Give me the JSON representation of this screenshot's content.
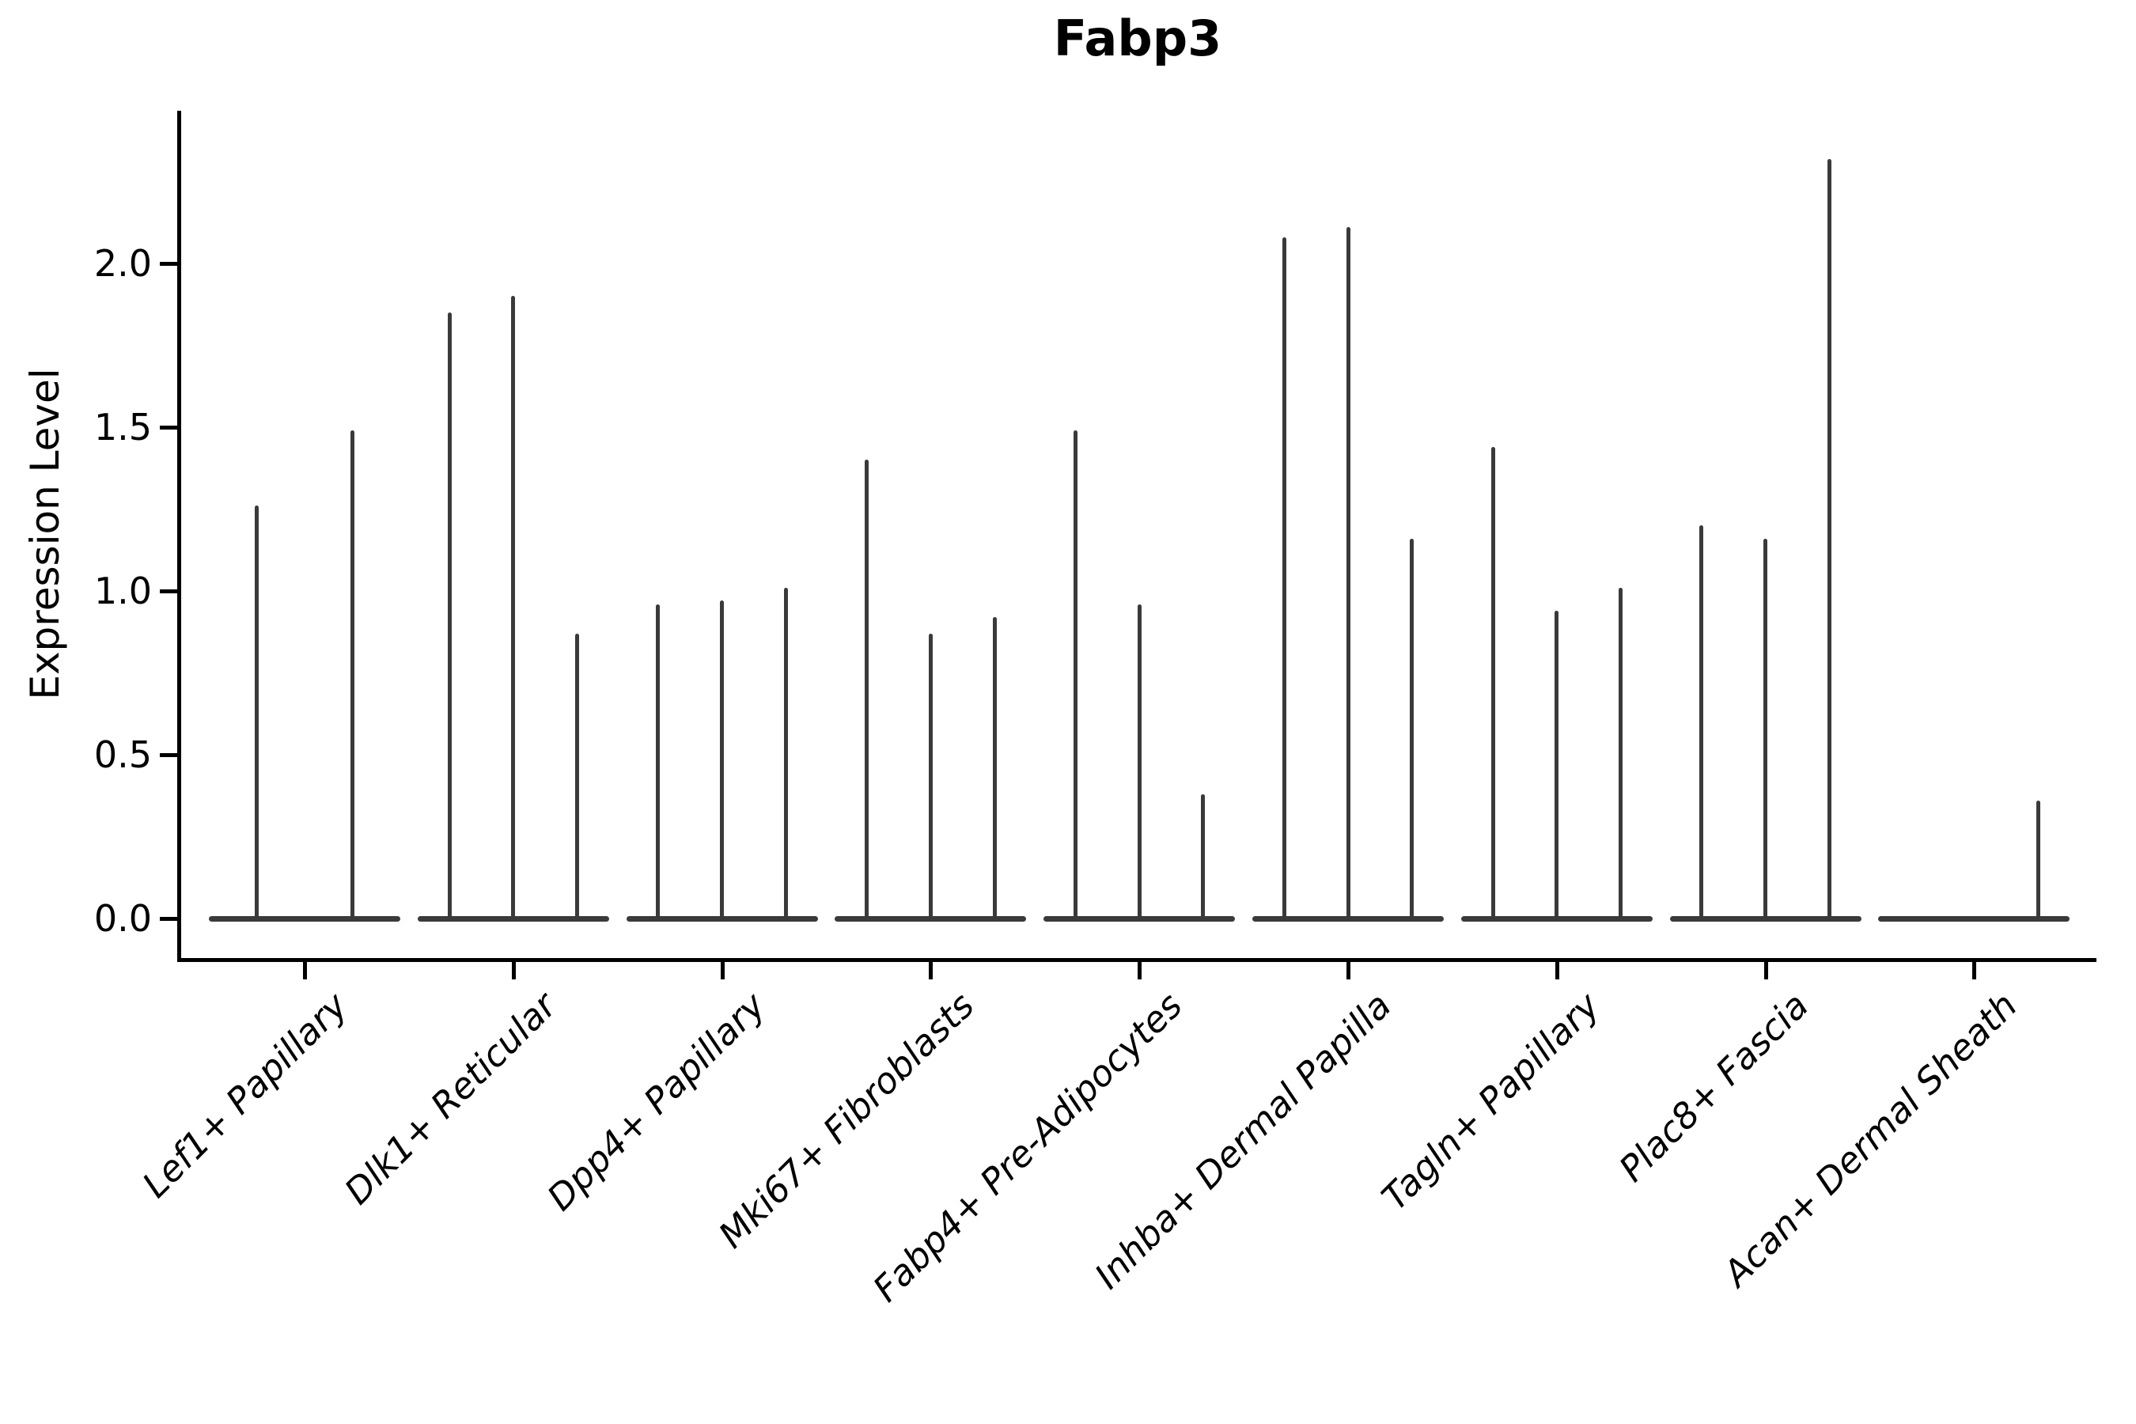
{
  "chart_data": {
    "type": "violin",
    "title": "Fabp3",
    "ylabel": "Expression Level",
    "xlabel": "",
    "ytick_values": [
      0.0,
      0.5,
      1.0,
      1.5,
      2.0
    ],
    "ytick_labels": [
      "0.0",
      "0.5",
      "1.0",
      "1.5",
      "2.0"
    ],
    "ylim": [
      -0.12,
      2.46
    ],
    "xtick_rotation": 45,
    "grid": false,
    "legend": false,
    "violin_color": "#3a3a3a",
    "axis_color": "#000000",
    "categories": [
      "Lef1+ Papillary",
      "Dlk1+ Reticular",
      "Dpp4+ Papillary",
      "Mki67+ Fibroblasts",
      "Fabp4+ Pre-Adipocytes",
      "Inhba+ Dermal Papilla",
      "Tagln+ Papillary",
      "Plac8+ Fascia",
      "Acan+ Dermal Sheath"
    ],
    "groups": [
      {
        "label": "Lef1+ Papillary",
        "n_slots": 2,
        "violins": [
          {
            "slot": 0,
            "peak": 1.26
          },
          {
            "slot": 1,
            "peak": 1.49
          }
        ]
      },
      {
        "label": "Dlk1+ Reticular",
        "n_slots": 3,
        "violins": [
          {
            "slot": 0,
            "peak": 1.85
          },
          {
            "slot": 1,
            "peak": 1.9
          },
          {
            "slot": 2,
            "peak": 0.87
          }
        ]
      },
      {
        "label": "Dpp4+ Papillary",
        "n_slots": 3,
        "violins": [
          {
            "slot": 0,
            "peak": 0.96
          },
          {
            "slot": 1,
            "peak": 0.97
          },
          {
            "slot": 2,
            "peak": 1.01
          }
        ]
      },
      {
        "label": "Mki67+ Fibroblasts",
        "n_slots": 3,
        "violins": [
          {
            "slot": 0,
            "peak": 1.4
          },
          {
            "slot": 1,
            "peak": 0.87
          },
          {
            "slot": 2,
            "peak": 0.92
          }
        ]
      },
      {
        "label": "Fabp4+ Pre-Adipocytes",
        "n_slots": 3,
        "violins": [
          {
            "slot": 0,
            "peak": 1.49
          },
          {
            "slot": 1,
            "peak": 0.96
          },
          {
            "slot": 2,
            "peak": 0.38
          }
        ]
      },
      {
        "label": "Inhba+ Dermal Papilla",
        "n_slots": 3,
        "violins": [
          {
            "slot": 0,
            "peak": 2.08
          },
          {
            "slot": 1,
            "peak": 2.11
          },
          {
            "slot": 2,
            "peak": 1.16
          }
        ]
      },
      {
        "label": "Tagln+ Papillary",
        "n_slots": 3,
        "violins": [
          {
            "slot": 0,
            "peak": 1.44
          },
          {
            "slot": 1,
            "peak": 0.94
          },
          {
            "slot": 2,
            "peak": 1.01
          }
        ]
      },
      {
        "label": "Plac8+ Fascia",
        "n_slots": 3,
        "violins": [
          {
            "slot": 0,
            "peak": 1.2
          },
          {
            "slot": 1,
            "peak": 1.16
          },
          {
            "slot": 2,
            "peak": 2.32
          }
        ]
      },
      {
        "label": "Acan+ Dermal Sheath",
        "n_slots": 3,
        "violins": [
          {
            "slot": 2,
            "peak": 0.36
          }
        ]
      }
    ]
  }
}
